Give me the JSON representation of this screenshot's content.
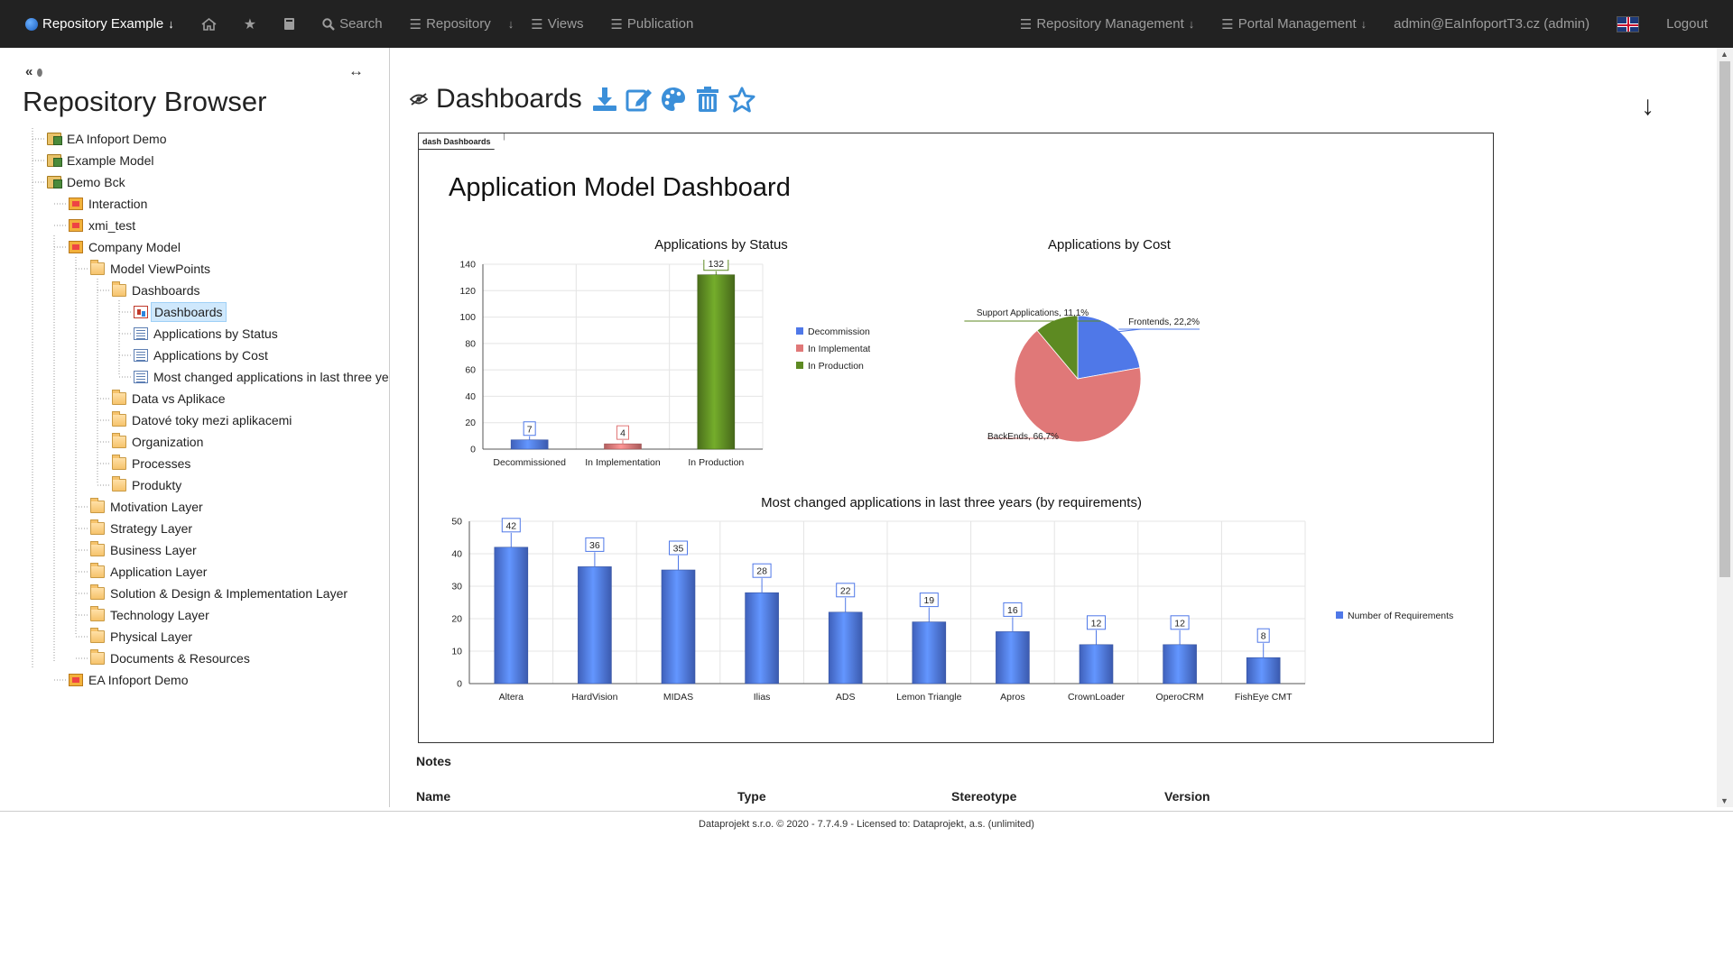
{
  "navbar": {
    "repo_label": "Repository Example",
    "search_label": "Search",
    "repository_label": "Repository",
    "views_label": "Views",
    "publication_label": "Publication",
    "repo_mgmt_label": "Repository Management",
    "portal_mgmt_label": "Portal Management",
    "user_label": "admin@EaInfoportT3.cz (admin)",
    "logout_label": "Logout"
  },
  "sidebar": {
    "title": "Repository Browser",
    "items": [
      {
        "label": "EA Infoport Demo",
        "icon": "package-root-icon"
      },
      {
        "label": "Example Model",
        "icon": "package-root-icon"
      },
      {
        "label": "Demo Bck",
        "icon": "package-root-icon"
      },
      {
        "label": "Interaction",
        "icon": "model-icon"
      },
      {
        "label": "xmi_test",
        "icon": "model-icon"
      },
      {
        "label": "Company Model",
        "icon": "model-icon"
      },
      {
        "label": "Model ViewPoints",
        "icon": "folder-icon"
      },
      {
        "label": "Dashboards",
        "icon": "folder-icon"
      },
      {
        "label": "Dashboards",
        "icon": "dashboard-icon"
      },
      {
        "label": "Applications by Status",
        "icon": "diagram-icon"
      },
      {
        "label": "Applications by Cost",
        "icon": "diagram-icon"
      },
      {
        "label": "Most changed applications in last three years",
        "icon": "diagram-icon"
      },
      {
        "label": "Data vs Aplikace",
        "icon": "folder-icon"
      },
      {
        "label": "Datové toky mezi aplikacemi",
        "icon": "folder-icon"
      },
      {
        "label": "Organization",
        "icon": "folder-icon"
      },
      {
        "label": "Processes",
        "icon": "folder-icon"
      },
      {
        "label": "Produkty",
        "icon": "folder-icon"
      },
      {
        "label": "Motivation Layer",
        "icon": "folder-icon"
      },
      {
        "label": "Strategy Layer",
        "icon": "folder-icon"
      },
      {
        "label": "Business Layer",
        "icon": "folder-icon"
      },
      {
        "label": "Application Layer",
        "icon": "folder-icon"
      },
      {
        "label": "Solution & Design & Implementation Layer",
        "icon": "folder-icon"
      },
      {
        "label": "Technology Layer",
        "icon": "folder-icon"
      },
      {
        "label": "Physical Layer",
        "icon": "folder-icon"
      },
      {
        "label": "Documents & Resources",
        "icon": "folder-icon"
      },
      {
        "label": "EA Infoport Demo",
        "icon": "model-icon"
      }
    ]
  },
  "main": {
    "page_title": "Dashboards",
    "frame_tab": "dash Dashboards",
    "dashboard_title": "Application Model Dashboard",
    "notes_label": "Notes",
    "table_headers": [
      "Name",
      "Type",
      "Stereotype",
      "Version"
    ]
  },
  "colors": {
    "blue": "#4f78e8",
    "red": "#e07878",
    "green": "#5d8a22"
  },
  "chart_data": [
    {
      "type": "bar",
      "title": "Applications by Status",
      "categories": [
        "Decommissioned",
        "In Implementation",
        "In Production"
      ],
      "values": [
        7,
        4,
        132
      ],
      "series_colors": [
        "#4f78e8",
        "#e07878",
        "#5d8a22"
      ],
      "legend": [
        "Decommissioned",
        "In Implementation",
        "In Production"
      ],
      "ylim": [
        0,
        140
      ],
      "yticks": [
        0,
        20,
        40,
        60,
        80,
        100,
        120,
        140
      ],
      "grid": true,
      "legend_position": "right"
    },
    {
      "type": "pie",
      "title": "Applications by Cost",
      "slices": [
        {
          "label": "Frontends, 22,2%",
          "value": 22.2,
          "color": "#4f78e8"
        },
        {
          "label": "BackEnds, 66,7%",
          "value": 66.7,
          "color": "#e07878"
        },
        {
          "label": "Support Applications, 11,1%",
          "value": 11.1,
          "color": "#5d8a22"
        }
      ]
    },
    {
      "type": "bar",
      "title": "Most changed applications in last three years (by requirements)",
      "categories": [
        "Altera",
        "HardVision",
        "MIDAS",
        "Ilias",
        "ADS",
        "Lemon Triangle",
        "Apros",
        "CrownLoader",
        "OperoCRM",
        "FishEye CMT"
      ],
      "series": [
        {
          "name": "Number of Requirements",
          "values": [
            42,
            36,
            35,
            28,
            22,
            19,
            16,
            12,
            12,
            8
          ]
        }
      ],
      "ylim": [
        0,
        50
      ],
      "yticks": [
        0,
        10,
        20,
        30,
        40,
        50
      ],
      "grid": true,
      "legend_position": "right"
    }
  ],
  "footer": {
    "text": "Dataprojekt s.r.o. © 2020 - 7.7.4.9 - Licensed to: Dataprojekt, a.s. (unlimited)"
  }
}
